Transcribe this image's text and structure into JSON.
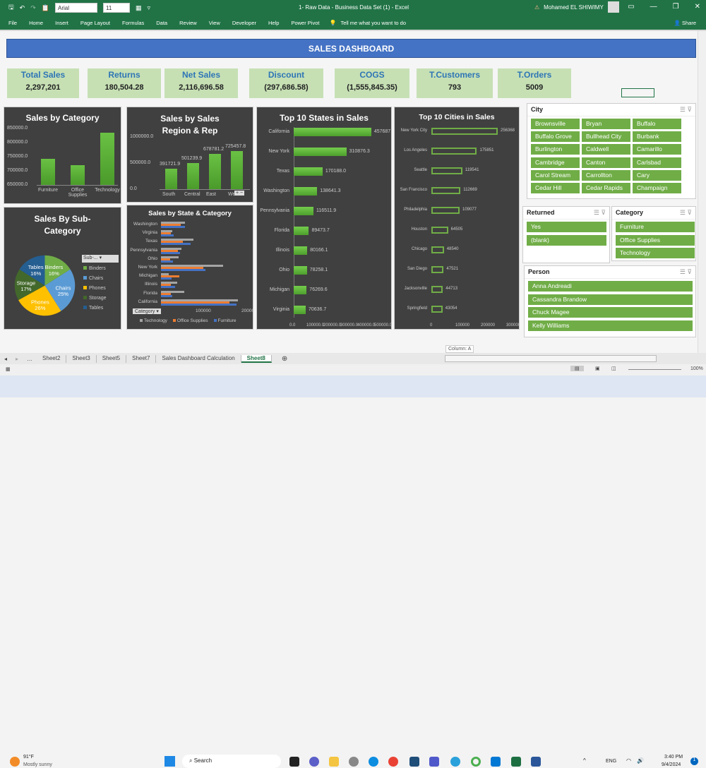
{
  "window": {
    "title": "1- Raw Data - Business Data Set (1)  -  Excel",
    "user": "Mohamed EL SHIWIMY",
    "font": "Arial",
    "font_size": "11"
  },
  "ribbon": {
    "tabs": [
      "File",
      "Home",
      "Insert",
      "Page Layout",
      "Formulas",
      "Data",
      "Review",
      "View",
      "Developer",
      "Help",
      "Power Pivot"
    ],
    "tell_me": "Tell me what you want to do",
    "share": "Share"
  },
  "dashboard": {
    "title": "SALES DASHBOARD"
  },
  "kpis": [
    {
      "label": "Total Sales",
      "value": "2,297,201"
    },
    {
      "label": "Returns",
      "value": "180,504.28"
    },
    {
      "label": "Net Sales",
      "value": "2,116,696.58"
    },
    {
      "label": "Discount",
      "value": "(297,686.58)"
    },
    {
      "label": "COGS",
      "value": "(1,555,845.35)"
    },
    {
      "label": "T.Customers",
      "value": "793"
    },
    {
      "label": "T.Orders",
      "value": "5009"
    }
  ],
  "chart_data": [
    {
      "type": "bar",
      "title": "Sales by Category",
      "categories": [
        "Furniture",
        "Office Supplies",
        "Technology"
      ],
      "values": [
        742000,
        719000,
        836000
      ],
      "ylim": [
        650000,
        850000
      ],
      "yticks": [
        "850000.0",
        "800000.0",
        "750000.0",
        "700000.0",
        "650000.0"
      ]
    },
    {
      "type": "bar",
      "title": "Sales by Sales Region & Rep",
      "categories": [
        "South",
        "Central",
        "East",
        "West"
      ],
      "values": [
        391721.9,
        501239.9,
        678781.2,
        725457.8
      ],
      "ylim": [
        0,
        1000000
      ],
      "yticks": [
        "1000000.0",
        "500000.0",
        "0.0"
      ]
    },
    {
      "type": "bar",
      "orientation": "horizontal",
      "title": "Top 10 States in Sales",
      "categories": [
        "California",
        "New York",
        "Texas",
        "Washington",
        "Pennsylvania",
        "Florida",
        "Illinois",
        "Ohio",
        "Michigan",
        "Virginia"
      ],
      "values": [
        457687.6,
        310876.3,
        170188.0,
        138641.3,
        116511.9,
        89473.7,
        80166.1,
        78258.1,
        76269.6,
        70636.7
      ],
      "xticks": [
        "0.0",
        "100000.0",
        "200000.0",
        "300000.0",
        "400000.0",
        "500000.0"
      ]
    },
    {
      "type": "bar",
      "orientation": "horizontal",
      "title": "Top 10 Cities in Sales",
      "categories": [
        "New York City",
        "Los Angeles",
        "Seattle",
        "San Francisco",
        "Philadelphia",
        "Houston",
        "Chicago",
        "San Diego",
        "Jacksonville",
        "Springfield"
      ],
      "values": [
        256368,
        175851,
        119541,
        112669,
        109077,
        64505,
        48540,
        47521,
        44713,
        43054
      ],
      "xticks": [
        "0",
        "100000",
        "200000",
        "300000"
      ]
    },
    {
      "type": "pie",
      "title": "Sales By Sub-Category",
      "categories": [
        "Binders",
        "Chairs",
        "Phones",
        "Storage",
        "Tables"
      ],
      "values": [
        16,
        25,
        26,
        17,
        16
      ],
      "legend_filter": "Sub-..."
    },
    {
      "type": "bar",
      "orientation": "horizontal",
      "title": "Sales by State & Category",
      "categories": [
        "Washington",
        "Virginia",
        "Texas",
        "Pennsylvania",
        "Ohio",
        "New York",
        "Michigan",
        "Illinois",
        "Florida",
        "California"
      ],
      "series": [
        {
          "name": "Technology",
          "values": [
            53000,
            25000,
            70000,
            44000,
            38000,
            135000,
            17000,
            35000,
            50000,
            168000
          ]
        },
        {
          "name": "Office Supplies",
          "values": [
            43000,
            22000,
            47000,
            37000,
            20000,
            93000,
            40000,
            22000,
            21000,
            149000
          ]
        },
        {
          "name": "Furniture",
          "values": [
            52000,
            28000,
            64000,
            42000,
            26000,
            97000,
            23000,
            30000,
            25000,
            164000
          ]
        }
      ],
      "xticks": [
        "100000",
        "200000"
      ],
      "filter": "Category"
    }
  ],
  "slicers": {
    "city": {
      "title": "City",
      "items": [
        "Brownsville",
        "Bryan",
        "Buffalo",
        "Buffalo Grove",
        "Bullhead City",
        "Burbank",
        "Burlington",
        "Caldwell",
        "Camarillo",
        "Cambridge",
        "Canton",
        "Carlsbad",
        "Carol Stream",
        "Carrollton",
        "Cary",
        "Cedar Hill",
        "Cedar Rapids",
        "Champaign"
      ]
    },
    "returned": {
      "title": "Returned",
      "items": [
        "Yes",
        "(blank)"
      ]
    },
    "category": {
      "title": "Category",
      "items": [
        "Furniture",
        "Office Supplies",
        "Technology"
      ]
    },
    "person": {
      "title": "Person",
      "items": [
        "Anna Andreadi",
        "Cassandra Brandow",
        "Chuck Magee",
        "Kelly Williams"
      ]
    }
  },
  "sheets": {
    "tabs": [
      "Sheet2",
      "Sheet3",
      "Sheet5",
      "Sheet7",
      "Sales Dashboard Calculation",
      "Sheet8"
    ],
    "active": "Sheet8",
    "tooltip": "Column: A"
  },
  "status": {
    "zoom": "100%"
  },
  "taskbar": {
    "weather_temp": "91°F",
    "weather_text": "Mostly sunny",
    "search": "Search",
    "lang": "ENG",
    "time": "3:40 PM",
    "date": "9/4/2024"
  }
}
